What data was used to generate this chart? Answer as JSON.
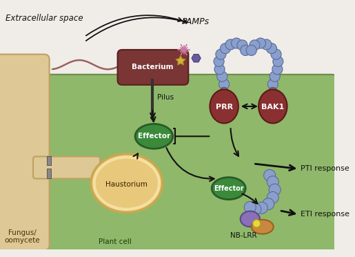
{
  "bg_color": "#f0ede8",
  "cell_color": "#8fb86a",
  "cell_edge": "#6a8a4a",
  "fungus_color": "#ddc896",
  "fungus_edge": "#c0a060",
  "bacterium_color": "#7a3535",
  "bacterium_edge": "#5a2020",
  "effector_color": "#3a8a3a",
  "effector_edge": "#2a5a2a",
  "prr_bak1_color": "#8a3030",
  "prr_bak1_edge": "#5a1a1a",
  "prr_stem_color": "#555555",
  "haustorium_fill": "#e8c87a",
  "haustorium_edge": "#c8a850",
  "haustorium_inner": "#f5dfa0",
  "nblrr_blue": "#8a9fcc",
  "nblrr_blue_edge": "#5a6a9a",
  "nblrr_purple": "#8a70b8",
  "nblrr_purple_edge": "#5a4a88",
  "nblrr_orange": "#c88840",
  "nblrr_orange_edge": "#986020",
  "nblrr_yellow": "#e8d840",
  "pamp_pink": "#c878a0",
  "pamp_gold": "#d4b040",
  "pamp_purple": "#6a5a9a",
  "arrow_color": "#111111",
  "text_dark": "#111111",
  "text_white": "#ffffff",
  "text_brown": "#3a2000",
  "flagella_color": "#9a6060",
  "title": "Extracellular space",
  "cell_label": "Plant cell",
  "fungus_label": "Fungus/\noomycete",
  "bacterium_label": "Bacterium",
  "pilus_label": "Pilus",
  "haustorium_label": "Haustorium",
  "pamps_label": "PAMPs",
  "prr_label": "PRR",
  "bak1_label": "BAK1",
  "effector_label": "Effector",
  "nblrr_label": "NB-LRR",
  "pti_label": "PTI response",
  "eti_label": "ETI response"
}
